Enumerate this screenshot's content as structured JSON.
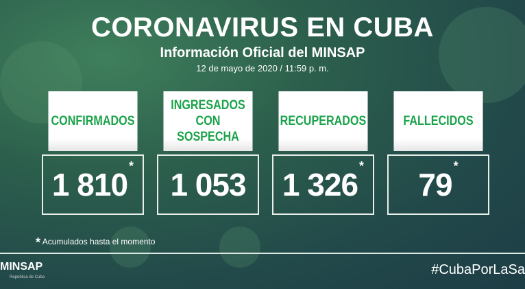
{
  "header": {
    "title": "CORONAVIRUS EN CUBA",
    "subtitle": "Información Oficial del MINSAP",
    "date": "12 de mayo de 2020 / 11:59 p. m."
  },
  "cards": [
    {
      "label": "CONFIRMADOS",
      "value": "1 810",
      "asterisk": "*"
    },
    {
      "label": "INGRESADOS CON SOSPECHA",
      "value": "1 053",
      "asterisk": ""
    },
    {
      "label": "RECUPERADOS",
      "value": "1 326",
      "asterisk": "*"
    },
    {
      "label": "FALLECIDOS",
      "value": "79",
      "asterisk": "*"
    }
  ],
  "footnote": {
    "mark": "*",
    "text": "Acumulados hasta el momento"
  },
  "footer": {
    "logo": "MINSAP",
    "logo_sub": "República de Cuba",
    "hashtag": "#CubaPorLaSa"
  },
  "colors": {
    "label_green": "#1aa34a",
    "background": "#2c5f4c"
  }
}
